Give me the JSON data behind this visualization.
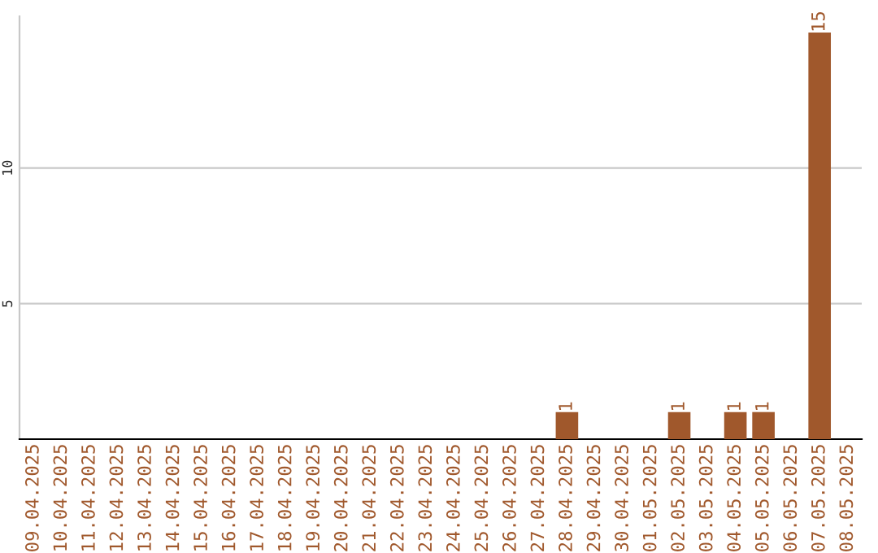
{
  "chart_data": {
    "type": "bar",
    "categories": [
      "09.04.2025",
      "10.04.2025",
      "11.04.2025",
      "12.04.2025",
      "13.04.2025",
      "14.04.2025",
      "15.04.2025",
      "16.04.2025",
      "17.04.2025",
      "18.04.2025",
      "19.04.2025",
      "20.04.2025",
      "21.04.2025",
      "22.04.2025",
      "23.04.2025",
      "24.04.2025",
      "25.04.2025",
      "26.04.2025",
      "27.04.2025",
      "28.04.2025",
      "29.04.2025",
      "30.04.2025",
      "01.05.2025",
      "02.05.2025",
      "03.05.2025",
      "04.05.2025",
      "05.05.2025",
      "06.05.2025",
      "07.05.2025",
      "08.05.2025"
    ],
    "values": [
      0,
      0,
      0,
      0,
      0,
      0,
      0,
      0,
      0,
      0,
      0,
      0,
      0,
      0,
      0,
      0,
      0,
      0,
      0,
      1,
      0,
      0,
      0,
      1,
      0,
      1,
      1,
      0,
      15,
      0
    ],
    "value_labels": [
      null,
      null,
      null,
      null,
      null,
      null,
      null,
      null,
      null,
      null,
      null,
      null,
      null,
      null,
      null,
      null,
      null,
      null,
      null,
      "1",
      null,
      null,
      null,
      "1",
      null,
      "1",
      "1",
      null,
      "15",
      null
    ],
    "color": "#a0582c",
    "ylim": [
      0,
      15.6
    ],
    "yticks": [
      5,
      10
    ],
    "grid": "y"
  }
}
